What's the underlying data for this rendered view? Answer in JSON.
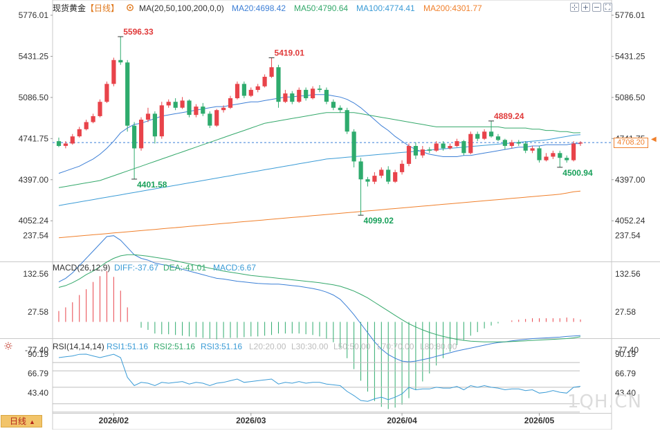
{
  "header": {
    "symbol": "现货黄金",
    "period_tag": "【日线】",
    "settings_icon": "gear-icon",
    "ma_title": "MA(20,50,100,200,0,0)",
    "ma_items": [
      {
        "label": "MA20:4698.42",
        "color": "#3d7fd6"
      },
      {
        "label": "MA50:4790.64",
        "color": "#33a86a"
      },
      {
        "label": "MA100:4774.41",
        "color": "#3a9bd6"
      },
      {
        "label": "MA200:4301.77",
        "color": "#f07f2a"
      }
    ]
  },
  "toolbar": {
    "buttons": [
      {
        "name": "move-icon",
        "glyph": "⊹"
      },
      {
        "name": "zoom-in-icon",
        "glyph": "+"
      },
      {
        "name": "zoom-out-icon",
        "glyph": "−"
      },
      {
        "name": "fullscreen-icon",
        "glyph": "⛶"
      }
    ]
  },
  "macd": {
    "title": "MACD(26,12,9)",
    "items": [
      {
        "label": "DIFF:-37.67",
        "color": "#3a9bd6"
      },
      {
        "label": "DEA:-41.01",
        "color": "#33a86a"
      },
      {
        "label": "MACD:6.67",
        "color": "#3a9bd6"
      }
    ],
    "y_ticks": [
      "237.54",
      "132.56",
      "27.58",
      "-77.40"
    ]
  },
  "rsi": {
    "title": "RSI(14,14,14)",
    "items": [
      {
        "label": "RSI1:51.16",
        "color": "#3a9bd6"
      },
      {
        "label": "RSI2:51.16",
        "color": "#33a86a"
      },
      {
        "label": "RSI3:51.16",
        "color": "#3a9bd6"
      },
      {
        "label": "L20:20.00",
        "color": "#bcbcbc"
      },
      {
        "label": "L30:30.00",
        "color": "#bcbcbc"
      },
      {
        "label": "L50:50.00",
        "color": "#bcbcbc"
      },
      {
        "label": "L70:70.00",
        "color": "#bcbcbc"
      },
      {
        "label": "L80:80.00",
        "color": "#bcbcbc"
      }
    ],
    "y_ticks": [
      "90.19",
      "66.79",
      "43.40"
    ],
    "collapse_icon": "sun-icon"
  },
  "footer": {
    "period_button": "日线",
    "period_arrow": "▲",
    "watermark": "1QH.CN"
  },
  "chart_data": {
    "type": "candlestick",
    "title": "现货黄金 日线",
    "y_ticks": [
      "5776.01",
      "5431.25",
      "5086.50",
      "4741.75",
      "4397.00",
      "4052.24"
    ],
    "ylim": [
      3880,
      5776.01
    ],
    "x_labels": [
      "2026/02",
      "2026/03",
      "2026/04",
      "2026/05"
    ],
    "last_price": "4708.20",
    "annotations": [
      {
        "label": "5596.33",
        "color": "#e03a3a"
      },
      {
        "label": "5419.01",
        "color": "#e03a3a"
      },
      {
        "label": "4401.58",
        "color": "#19a05a"
      },
      {
        "label": "4099.02",
        "color": "#19a05a"
      },
      {
        "label": "4889.24",
        "color": "#e03a3a"
      },
      {
        "label": "4500.94",
        "color": "#19a05a"
      }
    ],
    "candles": [
      [
        4720,
        4680,
        4750,
        4670
      ],
      [
        4680,
        4700,
        4720,
        4660
      ],
      [
        4700,
        4760,
        4780,
        4690
      ],
      [
        4760,
        4820,
        4840,
        4750
      ],
      [
        4820,
        4880,
        4900,
        4810
      ],
      [
        4880,
        4930,
        4950,
        4870
      ],
      [
        4930,
        5050,
        5070,
        4920
      ],
      [
        5050,
        5200,
        5220,
        5040
      ],
      [
        5200,
        5400,
        5420,
        5180
      ],
      [
        5400,
        5380,
        5596.33,
        5360
      ],
      [
        5380,
        4850,
        5400,
        4800
      ],
      [
        4850,
        4660,
        4880,
        4401.58
      ],
      [
        4660,
        4900,
        4920,
        4640
      ],
      [
        4900,
        4950,
        5000,
        4880
      ],
      [
        4950,
        4760,
        4970,
        4700
      ],
      [
        4760,
        5020,
        5050,
        4740
      ],
      [
        5020,
        5050,
        5070,
        5000
      ],
      [
        5050,
        5000,
        5080,
        4980
      ],
      [
        5000,
        5060,
        5090,
        4990
      ],
      [
        5060,
        4940,
        5070,
        4920
      ],
      [
        4940,
        5010,
        5030,
        4920
      ],
      [
        5010,
        4950,
        5040,
        4930
      ],
      [
        4950,
        4850,
        4970,
        4830
      ],
      [
        4850,
        4980,
        4990,
        4840
      ],
      [
        4980,
        5000,
        5020,
        4960
      ],
      [
        5000,
        5080,
        5100,
        4990
      ],
      [
        5080,
        5200,
        5220,
        5070
      ],
      [
        5200,
        5100,
        5220,
        5080
      ],
      [
        5100,
        5150,
        5170,
        5090
      ],
      [
        5150,
        5180,
        5200,
        5130
      ],
      [
        5180,
        5260,
        5280,
        5170
      ],
      [
        5260,
        5340,
        5419.01,
        5250
      ],
      [
        5340,
        5050,
        5360,
        5000
      ],
      [
        5050,
        5120,
        5150,
        5040
      ],
      [
        5120,
        5050,
        5140,
        5030
      ],
      [
        5050,
        5150,
        5170,
        5040
      ],
      [
        5150,
        5080,
        5170,
        5060
      ],
      [
        5080,
        5160,
        5180,
        5070
      ],
      [
        5160,
        5150,
        5190,
        5130
      ],
      [
        5150,
        5050,
        5170,
        5030
      ],
      [
        5050,
        5000,
        5070,
        4980
      ],
      [
        5000,
        4980,
        5020,
        4960
      ],
      [
        4980,
        4800,
        5000,
        4780
      ],
      [
        4800,
        4550,
        4820,
        4500
      ],
      [
        4550,
        4400,
        4580,
        4099.02
      ],
      [
        4400,
        4380,
        4420,
        4340
      ],
      [
        4380,
        4430,
        4460,
        4360
      ],
      [
        4430,
        4480,
        4500,
        4410
      ],
      [
        4480,
        4380,
        4510,
        4360
      ],
      [
        4380,
        4460,
        4480,
        4370
      ],
      [
        4460,
        4530,
        4560,
        4440
      ],
      [
        4530,
        4680,
        4700,
        4510
      ],
      [
        4680,
        4600,
        4710,
        4570
      ],
      [
        4600,
        4650,
        4680,
        4580
      ],
      [
        4650,
        4640,
        4670,
        4620
      ],
      [
        4640,
        4700,
        4720,
        4630
      ],
      [
        4700,
        4660,
        4720,
        4640
      ],
      [
        4660,
        4680,
        4700,
        4650
      ],
      [
        4680,
        4720,
        4740,
        4670
      ],
      [
        4720,
        4620,
        4730,
        4600
      ],
      [
        4620,
        4780,
        4800,
        4610
      ],
      [
        4780,
        4740,
        4800,
        4720
      ],
      [
        4740,
        4800,
        4820,
        4730
      ],
      [
        4800,
        4760,
        4889.24,
        4750
      ],
      [
        4760,
        4730,
        4780,
        4720
      ],
      [
        4730,
        4680,
        4740,
        4650
      ],
      [
        4680,
        4710,
        4730,
        4660
      ],
      [
        4710,
        4700,
        4730,
        4680
      ],
      [
        4700,
        4640,
        4720,
        4620
      ],
      [
        4640,
        4660,
        4680,
        4620
      ],
      [
        4660,
        4560,
        4680,
        4540
      ],
      [
        4560,
        4590,
        4620,
        4550
      ],
      [
        4590,
        4620,
        4640,
        4570
      ],
      [
        4620,
        4580,
        4640,
        4500.94
      ],
      [
        4580,
        4560,
        4600,
        4540
      ],
      [
        4560,
        4700,
        4720,
        4550
      ],
      [
        4700,
        4708.2,
        4720,
        4680
      ]
    ],
    "ma_series": [
      {
        "name": "MA20",
        "color": "#3d7fd6",
        "values": [
          4450,
          4470,
          4490,
          4510,
          4540,
          4570,
          4610,
          4660,
          4720,
          4790,
          4830,
          4860,
          4870,
          4890,
          4910,
          4930,
          4940,
          4950,
          4960,
          4970,
          4980,
          4990,
          5000,
          5010,
          5010,
          5020,
          5030,
          5040,
          5050,
          5050,
          5060,
          5070,
          5080,
          5090,
          5090,
          5100,
          5100,
          5110,
          5110,
          5110,
          5100,
          5090,
          5070,
          5040,
          5000,
          4950,
          4900,
          4850,
          4810,
          4760,
          4720,
          4680,
          4650,
          4630,
          4610,
          4600,
          4590,
          4590,
          4590,
          4600,
          4600,
          4610,
          4620,
          4630,
          4640,
          4650,
          4660,
          4670,
          4670,
          4680,
          4680,
          4690,
          4690,
          4690,
          4690,
          4700,
          4698.42
        ]
      },
      {
        "name": "MA50",
        "color": "#33a86a",
        "values": [
          4330,
          4340,
          4350,
          4360,
          4370,
          4380,
          4390,
          4410,
          4430,
          4450,
          4470,
          4490,
          4510,
          4530,
          4550,
          4570,
          4590,
          4610,
          4630,
          4650,
          4670,
          4690,
          4710,
          4730,
          4750,
          4770,
          4790,
          4810,
          4830,
          4850,
          4870,
          4880,
          4890,
          4900,
          4910,
          4920,
          4930,
          4940,
          4950,
          4960,
          4960,
          4960,
          4960,
          4960,
          4950,
          4940,
          4930,
          4920,
          4910,
          4900,
          4890,
          4880,
          4870,
          4860,
          4850,
          4840,
          4840,
          4840,
          4840,
          4840,
          4840,
          4840,
          4840,
          4840,
          4840,
          4830,
          4830,
          4830,
          4830,
          4820,
          4820,
          4810,
          4810,
          4800,
          4800,
          4790,
          4790.64
        ]
      },
      {
        "name": "MA100",
        "color": "#3a9bd6",
        "values": [
          4180,
          4190,
          4200,
          4210,
          4220,
          4230,
          4240,
          4250,
          4260,
          4270,
          4280,
          4290,
          4300,
          4310,
          4320,
          4330,
          4340,
          4350,
          4360,
          4370,
          4380,
          4390,
          4400,
          4410,
          4420,
          4430,
          4440,
          4450,
          4460,
          4470,
          4480,
          4490,
          4500,
          4510,
          4520,
          4530,
          4540,
          4550,
          4560,
          4570,
          4575,
          4580,
          4585,
          4590,
          4595,
          4600,
          4605,
          4610,
          4615,
          4620,
          4625,
          4630,
          4635,
          4640,
          4645,
          4650,
          4655,
          4660,
          4665,
          4670,
          4675,
          4680,
          4685,
          4690,
          4695,
          4700,
          4705,
          4710,
          4715,
          4720,
          4725,
          4730,
          4740,
          4750,
          4760,
          4770,
          4774.41
        ]
      },
      {
        "name": "MA200",
        "color": "#f07f2a",
        "values": [
          3910,
          3915,
          3920,
          3925,
          3930,
          3935,
          3940,
          3945,
          3950,
          3955,
          3960,
          3965,
          3970,
          3975,
          3980,
          3985,
          3990,
          3995,
          4000,
          4005,
          4010,
          4015,
          4020,
          4025,
          4030,
          4035,
          4040,
          4045,
          4050,
          4055,
          4060,
          4065,
          4070,
          4075,
          4080,
          4085,
          4090,
          4095,
          4100,
          4105,
          4110,
          4115,
          4120,
          4125,
          4130,
          4135,
          4140,
          4145,
          4150,
          4155,
          4160,
          4165,
          4170,
          4175,
          4180,
          4185,
          4190,
          4195,
          4200,
          4205,
          4210,
          4215,
          4220,
          4225,
          4230,
          4235,
          4240,
          4245,
          4250,
          4255,
          4260,
          4265,
          4270,
          4275,
          4285,
          4295,
          4301.77
        ]
      }
    ],
    "macd_data": {
      "ylim": [
        -150,
        250
      ],
      "diff": [
        110,
        120,
        135,
        155,
        175,
        195,
        215,
        235,
        237.54,
        225,
        205,
        185,
        175,
        170,
        162,
        158,
        155,
        150,
        145,
        140,
        135,
        130,
        125,
        120,
        118,
        115,
        112,
        110,
        108,
        106,
        105,
        104,
        104,
        102,
        100,
        98,
        95,
        92,
        88,
        82,
        74,
        62,
        42,
        20,
        -5,
        -30,
        -55,
        -75,
        -90,
        -100,
        -108,
        -110,
        -108,
        -104,
        -100,
        -95,
        -90,
        -85,
        -80,
        -76,
        -72,
        -68,
        -64,
        -60,
        -57,
        -55,
        -52,
        -50,
        -48,
        -46,
        -45,
        -44,
        -43,
        -42,
        -40,
        -39,
        -37.67
      ],
      "dea": [
        95,
        100,
        108,
        118,
        130,
        140,
        152,
        165,
        175,
        182,
        185,
        185,
        183,
        181,
        178,
        175,
        172,
        168,
        164,
        160,
        156,
        152,
        148,
        144,
        140,
        137,
        134,
        131,
        128,
        126,
        124,
        122,
        120,
        118,
        116,
        114,
        112,
        110,
        108,
        105,
        102,
        98,
        92,
        85,
        76,
        66,
        54,
        42,
        30,
        18,
        6,
        -5,
        -14,
        -22,
        -29,
        -35,
        -40,
        -44,
        -48,
        -51,
        -53,
        -54,
        -55,
        -55,
        -55,
        -55,
        -54,
        -53,
        -52,
        -51,
        -50,
        -49,
        -48,
        -47,
        -46,
        -44,
        -41.01
      ],
      "hist": [
        30,
        40,
        54,
        74,
        90,
        110,
        126,
        140,
        124,
        86,
        40,
        0,
        -16,
        -22,
        -32,
        -34,
        -34,
        -36,
        -38,
        -40,
        -42,
        -44,
        -46,
        -48,
        -44,
        -44,
        -44,
        -42,
        -40,
        -40,
        -38,
        -36,
        -32,
        -32,
        -32,
        -32,
        -34,
        -36,
        -40,
        -46,
        -56,
        -72,
        -100,
        -130,
        -162,
        -192,
        -218,
        -234,
        -240,
        -236,
        -228,
        -210,
        -188,
        -164,
        -142,
        -120,
        -100,
        -82,
        -64,
        -50,
        -38,
        -28,
        -18,
        -10,
        -4,
        0,
        4,
        6,
        8,
        10,
        10,
        10,
        10,
        10,
        12,
        10,
        6.67
      ]
    },
    "rsi_data": {
      "ylim": [
        20,
        100
      ],
      "values": [
        86,
        87,
        88,
        90,
        90.19,
        88,
        86,
        88,
        90,
        86,
        62,
        52,
        56,
        55,
        52,
        56,
        55,
        56,
        57,
        54,
        56,
        55,
        52,
        55,
        56,
        58,
        60,
        56,
        57,
        58,
        59,
        60,
        54,
        56,
        55,
        57,
        55,
        56,
        56,
        54,
        53,
        52,
        45,
        40,
        34,
        33,
        36,
        38,
        35,
        38,
        42,
        50,
        47,
        48,
        48,
        50,
        49,
        49,
        51,
        47,
        52,
        50,
        52,
        50,
        49,
        47,
        48,
        48,
        46,
        47,
        43,
        44,
        46,
        44,
        43,
        50,
        51.16
      ]
    }
  }
}
